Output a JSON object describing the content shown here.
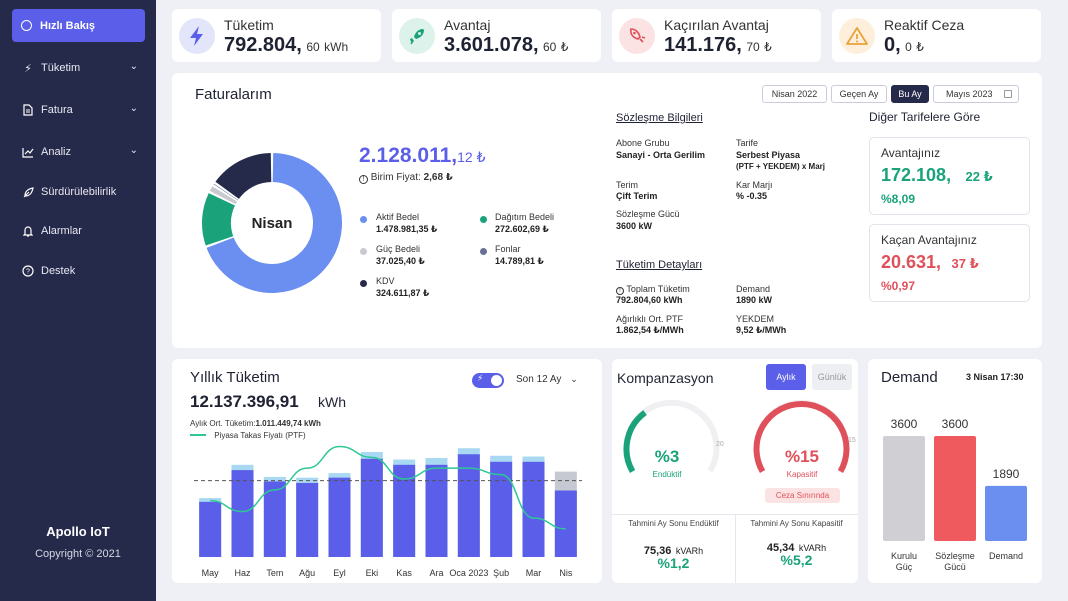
{
  "sidebar": {
    "active": "Hızlı Bakış",
    "items": [
      {
        "label": "Tüketim",
        "icon": "bolt-icon",
        "chevron": true
      },
      {
        "label": "Fatura",
        "icon": "document-icon",
        "chevron": true
      },
      {
        "label": "Analiz",
        "icon": "chart-line-icon",
        "chevron": true
      },
      {
        "label": "Sürdürülebilirlik",
        "icon": "leaf-icon",
        "chevron": false
      },
      {
        "label": "Alarmlar",
        "icon": "bell-icon",
        "chevron": false
      },
      {
        "label": "Destek",
        "icon": "question-icon",
        "chevron": false
      }
    ],
    "brand": "Apollo IoT",
    "copyright": "Copyright © 2021"
  },
  "kpis": [
    {
      "label": "Tüketim",
      "value": "792.804,",
      "decimals": "60",
      "unit": "kWh",
      "icon": "lightning-icon",
      "color": "#5a5ee8"
    },
    {
      "label": "Avantaj",
      "value": "3.601.078,",
      "decimals": "60",
      "unit": "₺",
      "icon": "rocket-icon",
      "color": "#1aa37a"
    },
    {
      "label": "Kaçırılan Avantaj",
      "value": "141.176,",
      "decimals": "70",
      "unit": "₺",
      "icon": "broken-rocket-icon",
      "color": "#e0505a"
    },
    {
      "label": "Reaktif Ceza",
      "value": "0,",
      "decimals": "0",
      "unit": "₺",
      "icon": "warning-icon",
      "color": "#e8a23a"
    }
  ],
  "invoices": {
    "title": "Faturalarım",
    "filters": [
      "Nisan 2022",
      "Geçen Ay",
      "Bu Ay"
    ],
    "active_filter": "Bu Ay",
    "date_picker": "Mayıs 2023",
    "donut_center": "Nisan",
    "total": "2.128.011,",
    "total_decimals": "12 ₺",
    "unit_price_label": "Birim Fiyat:",
    "unit_price_value": "2,68 ₺",
    "breakdown": [
      {
        "label": "Aktif Bedel",
        "value": "1.478.981,35 ₺",
        "color": "#6b8ff0"
      },
      {
        "label": "Dağıtım Bedeli",
        "value": "272.602,69 ₺",
        "color": "#1aa37a"
      },
      {
        "label": "Güç Bedeli",
        "value": "37.025,40 ₺",
        "color": "#c9c9d0"
      },
      {
        "label": "Fonlar",
        "value": "14.789,81 ₺",
        "color": "#6a6f95"
      },
      {
        "label": "KDV",
        "value": "324.611,87 ₺",
        "color": "#262a4a"
      }
    ],
    "contract": {
      "title": "Sözleşme Bilgileri",
      "subscriber_group_label": "Abone Grubu",
      "subscriber_group_value": "Sanayi - Orta Gerilim",
      "tariff_label": "Tarife",
      "tariff_value": "Serbest Piyasa",
      "tariff_detail": "(PTF + YEKDEM) x Marj",
      "term_label": "Terim",
      "term_value": "Çift Terim",
      "profit_margin_label": "Kar Marjı",
      "profit_margin_value": "% -0.35",
      "contract_power_label": "Sözleşme Gücü",
      "contract_power_value": "3600 kW"
    },
    "consumption_details": {
      "title": "Tüketim Detayları",
      "total_label": "Toplam Tüketim",
      "total_value": "792.804,60 kWh",
      "demand_label": "Demand",
      "demand_value": "1890 kW",
      "weighted_ptf_label": "Ağırlıklı Ort. PTF",
      "weighted_ptf_value": "1.862,54 ₺/MWh",
      "yekdem_label": "YEKDEM",
      "yekdem_value": "9,52 ₺/MWh"
    },
    "other_tariffs": {
      "title": "Diğer Tarifelere Göre",
      "advantage_label": "Avantajınız",
      "advantage_value": "172.108,",
      "advantage_decimals": "22 ₺",
      "advantage_pct": "%8,09",
      "missed_label": "Kaçan Avantajınız",
      "missed_value": "20.631,",
      "missed_decimals": "37 ₺",
      "missed_pct": "%0,97"
    }
  },
  "annual": {
    "title": "Yıllık Tüketim",
    "period": "Son 12 Ay",
    "total": "12.137.396,91",
    "unit": "kWh",
    "monthly_avg_label": "Aylık Ort. Tüketim:",
    "monthly_avg_value": "1.011.449,74 kWh",
    "legend_ptf": "Piyasa Takas Fiyatı (PTF)"
  },
  "chart_data": {
    "type": "bar",
    "categories": [
      "May",
      "Haz",
      "Tem",
      "Ağu",
      "Eyl",
      "Eki",
      "Kas",
      "Ara",
      "Oca 2023",
      "Şub",
      "Mar",
      "Nis"
    ],
    "series": [
      {
        "values": [
          730000,
          1150000,
          1000000,
          980000,
          1050000,
          1300000,
          1220000,
          1220000,
          1360000,
          1260000,
          1260000,
          880000
        ]
      },
      {
        "values": [
          780000,
          1220000,
          1060000,
          1050000,
          1110000,
          1390000,
          1290000,
          1310000,
          1440000,
          1340000,
          1330000,
          1130000
        ]
      },
      {
        "values": [
          1300,
          1050,
          1550,
          2050,
          2550,
          2300,
          1800,
          2050,
          2050,
          1900,
          900,
          650
        ]
      }
    ],
    "average_line": 1011449.74,
    "ylim": [
      0,
      1800000
    ],
    "colors": {
      "bar": "#5a5ee8",
      "bar_top": "#a9d8f2",
      "last_bar_top": "#c6c8d2",
      "line": "#2ec795",
      "avg": "#555"
    }
  },
  "compensation": {
    "title": "Kompanzasyon",
    "tabs": [
      "Aylık",
      "Günlük"
    ],
    "active_tab": "Aylık",
    "inductive": {
      "value": "%3",
      "label": "Endüktif",
      "max": "20",
      "fraction": 0.15,
      "color": "#1aa37a"
    },
    "capacitive": {
      "value": "%15",
      "label": "Kapasitif",
      "max": "15",
      "fraction": 1.0,
      "color": "#e0505a",
      "status": "Ceza Sınırında"
    },
    "est_inductive_label": "Tahmini Ay Sonu Endüktif",
    "est_inductive_value": "75,36",
    "est_inductive_unit": "kVARh",
    "est_inductive_pct": "%1,2",
    "est_capacitive_label": "Tahmini Ay Sonu Kapasitif",
    "est_capacitive_value": "45,34",
    "est_capacitive_unit": "kVARh",
    "est_capacitive_pct": "%5,2"
  },
  "demand": {
    "title": "Demand",
    "date": "3 Nisan 17:30",
    "bars": [
      {
        "label": "Kurulu Güç",
        "value": 3600,
        "display": "3600",
        "color": "#cfcfd4"
      },
      {
        "label": "Sözleşme Gücü",
        "value": 3600,
        "display": "3600",
        "color": "#ef5a5f"
      },
      {
        "label": "Demand",
        "value": 1890,
        "display": "1890",
        "color": "#6b8ff0"
      }
    ]
  }
}
